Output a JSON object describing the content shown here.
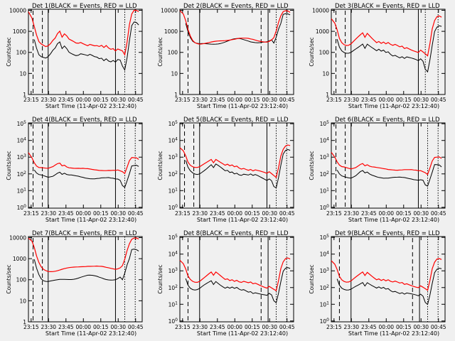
{
  "panels": [
    {
      "title": "Det 1(BLACK = Events, RED = LLD",
      "scale": "dec"
    },
    {
      "title": "Det 2(BLACK = Events, RED = LLD",
      "scale": "dec"
    },
    {
      "title": "Det 3(BLACK = Events, RED = LLD",
      "scale": "dec"
    },
    {
      "title": "Det 4(BLACK = Events, RED = LLD",
      "scale": "exp"
    },
    {
      "title": "Det 5(BLACK = Events, RED = LLD",
      "scale": "exp"
    },
    {
      "title": "Det 6(BLACK = Events, RED = LLD",
      "scale": "exp"
    },
    {
      "title": "Det 7(BLACK = Events, RED = LLD",
      "scale": "dec"
    },
    {
      "title": "Det 8(BLACK = Events, RED = LLD",
      "scale": "exp"
    },
    {
      "title": "Det 9(BLACK = Events, RED = LLD",
      "scale": "exp"
    }
  ],
  "xlabel": "Start Time (11-Apr-02 23:12:40)",
  "ylabel": "Counts/sec",
  "xticks": [
    "23:15",
    "23:30",
    "23:45",
    "00:00",
    "00:15",
    "00:30",
    "00:45"
  ],
  "yticks_dec": [
    "1",
    "10",
    "100",
    "1000",
    "10000"
  ],
  "yticks_exp": [
    "10^0",
    "10^1",
    "10^2",
    "10^3",
    "10^4",
    "10^5"
  ],
  "colors": {
    "events": "#000000",
    "lld": "#ff0000",
    "background": "#f0f0f0"
  },
  "chart_data": {
    "type": "line",
    "note": "9 panels, log y axis; minutes since 23:12:40 on x",
    "x": [
      0,
      3,
      5,
      7,
      9,
      11,
      13,
      15,
      17,
      19,
      21,
      23,
      25,
      27,
      29,
      31,
      33,
      35,
      37,
      39,
      41,
      43,
      45,
      47,
      49,
      51,
      53,
      55,
      57,
      59,
      61,
      63,
      65,
      67,
      69,
      71,
      73,
      75,
      77,
      79,
      81,
      83,
      85,
      87,
      89,
      91,
      93,
      95
    ],
    "xlim": [
      0,
      98
    ],
    "series": [
      {
        "name": "BLACK = Events"
      },
      {
        "name": "RED = LLD"
      }
    ]
  }
}
